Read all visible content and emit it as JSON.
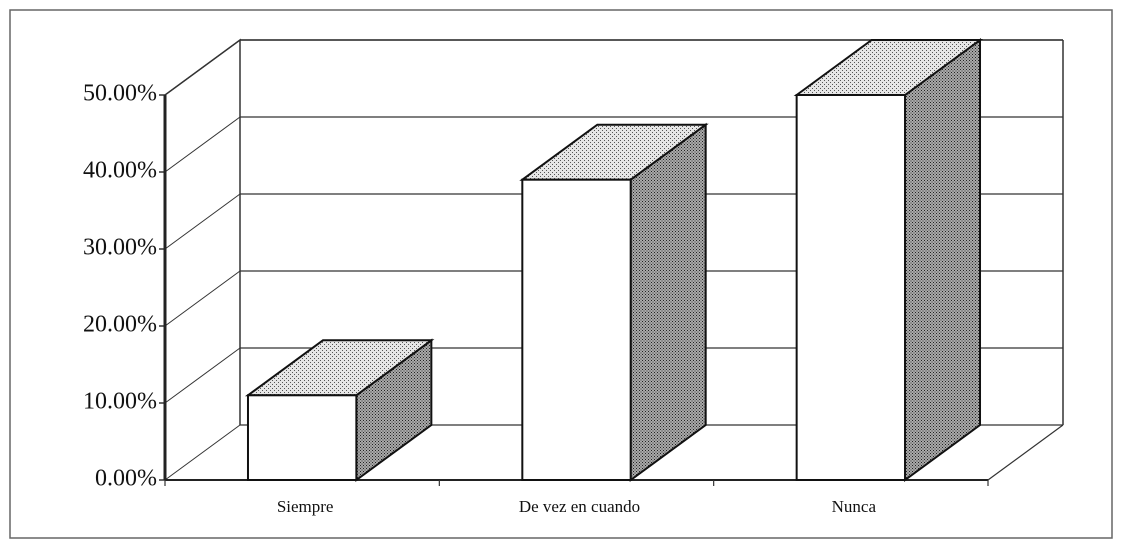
{
  "chart_data": {
    "type": "bar3d",
    "categories": [
      "Siempre",
      "De vez en cuando",
      "Nunca"
    ],
    "values": [
      11,
      39,
      50
    ],
    "ylim": [
      0,
      50
    ],
    "yticks": [
      {
        "value": 0,
        "label": "0.00%"
      },
      {
        "value": 10,
        "label": "10.00%"
      },
      {
        "value": 20,
        "label": "20.00%"
      },
      {
        "value": 30,
        "label": "30.00%"
      },
      {
        "value": 40,
        "label": "40.00%"
      },
      {
        "value": 50,
        "label": "50.00%"
      }
    ],
    "grid": true
  }
}
